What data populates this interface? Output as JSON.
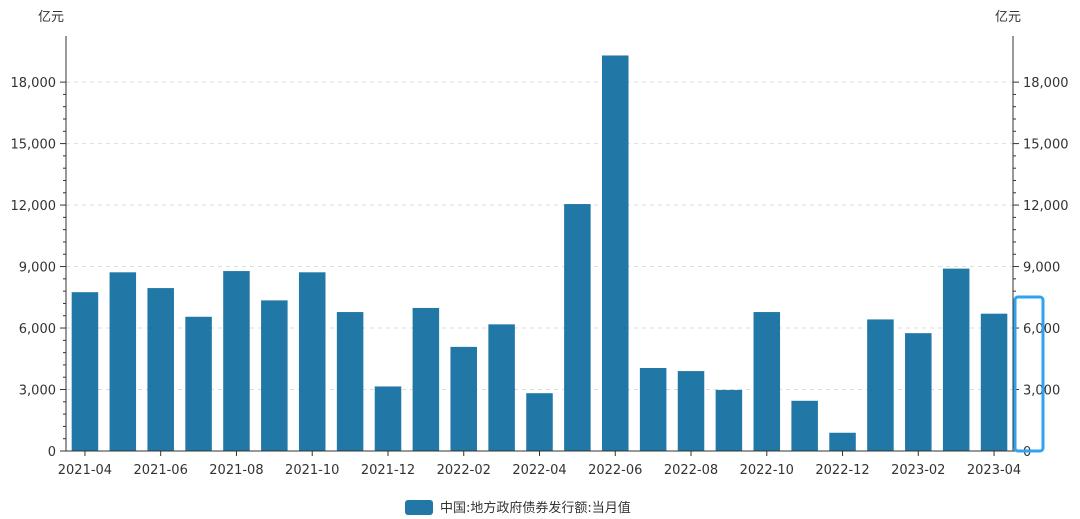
{
  "colors": {
    "bar": "#2178a6",
    "axis": "#333333",
    "grid": "#dddddd",
    "highlight": "#2fa3ef"
  },
  "units": {
    "left": "亿元",
    "right": "亿元"
  },
  "legend": {
    "label": "中国:地方政府债券发行额:当月值",
    "placement": "bottom-center"
  },
  "chart_data": {
    "type": "bar",
    "categories": [
      "2021-04",
      "2021-05",
      "2021-06",
      "2021-07",
      "2021-08",
      "2021-09",
      "2021-10",
      "2021-11",
      "2021-12",
      "2022-01",
      "2022-02",
      "2022-03",
      "2022-04",
      "2022-05",
      "2022-06",
      "2022-07",
      "2022-08",
      "2022-09",
      "2022-10",
      "2022-11",
      "2022-12",
      "2023-01",
      "2023-02",
      "2023-03",
      "2023-04"
    ],
    "tick_labels": [
      "2021-04",
      "2021-06",
      "2021-08",
      "2021-10",
      "2021-12",
      "2022-02",
      "2022-04",
      "2022-06",
      "2022-08",
      "2022-10",
      "2022-12",
      "2023-02",
      "2023-04"
    ],
    "series": [
      {
        "name": "中国:地方政府债券发行额:当月值",
        "values": [
          7750,
          8720,
          7950,
          6550,
          8780,
          7350,
          8720,
          6780,
          3150,
          6980,
          5080,
          6180,
          2820,
          12050,
          19300,
          4050,
          3900,
          2980,
          6780,
          2450,
          890,
          6420,
          5750,
          8900,
          6700
        ]
      }
    ],
    "ylim": [
      0,
      20250
    ],
    "yticks": [
      0,
      3000,
      6000,
      9000,
      12000,
      15000,
      18000
    ],
    "ytick_labels": [
      "0",
      "3,000",
      "6,000",
      "9,000",
      "12,000",
      "15,000",
      "18,000"
    ],
    "grid": true,
    "title": "",
    "xlabel": "",
    "ylabel": "亿元"
  }
}
